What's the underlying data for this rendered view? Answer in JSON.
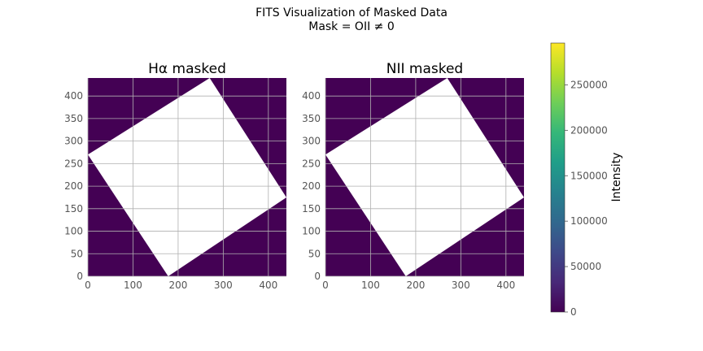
{
  "figure": {
    "title_line1": "FITS Visualization of Masked Data",
    "title_line2": "Mask = OII ≠ 0"
  },
  "colors": {
    "masked": "#440154",
    "unmasked": "#ffffff",
    "grid": "#b0b0b0",
    "tick_text": "#555555",
    "colormap": [
      "#440154",
      "#482878",
      "#3e4989",
      "#31688e",
      "#26828e",
      "#1f9e89",
      "#35b779",
      "#6ece58",
      "#b5de2b",
      "#fde725"
    ]
  },
  "chart_data": [
    {
      "type": "heatmap",
      "title": "Hα masked",
      "xlim": [
        0,
        440
      ],
      "ylim": [
        0,
        440
      ],
      "xticks": [
        0,
        100,
        200,
        300,
        400
      ],
      "yticks": [
        0,
        50,
        100,
        150,
        200,
        250,
        300,
        350,
        400
      ],
      "grid": true,
      "unmasked_region": [
        [
          0,
          270
        ],
        [
          270,
          440
        ],
        [
          440,
          175
        ],
        [
          178,
          0
        ]
      ]
    },
    {
      "type": "heatmap",
      "title": "NII masked",
      "xlim": [
        0,
        440
      ],
      "ylim": [
        0,
        440
      ],
      "xticks": [
        0,
        100,
        200,
        300,
        400
      ],
      "yticks": [
        0,
        50,
        100,
        150,
        200,
        250,
        300,
        350,
        400
      ],
      "grid": true,
      "unmasked_region": [
        [
          0,
          270
        ],
        [
          270,
          440
        ],
        [
          440,
          175
        ],
        [
          178,
          0
        ]
      ]
    }
  ],
  "colorbar": {
    "label": "Intensity",
    "range": [
      0,
      296000
    ],
    "ticks": [
      0,
      50000,
      100000,
      150000,
      200000,
      250000
    ],
    "colormap": "viridis"
  }
}
